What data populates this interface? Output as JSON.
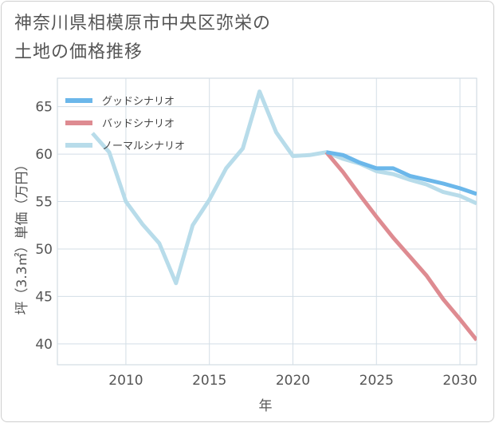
{
  "title": {
    "line1": "神奈川県相模原市中央区弥栄の",
    "line2": "土地の価格推移"
  },
  "chart_data": {
    "type": "line",
    "xlabel": "年",
    "ylabel": "坪（3.3㎡）単価（万円）",
    "xlim": [
      2005.9,
      2031
    ],
    "ylim": [
      37.8,
      68
    ],
    "xticks": [
      2010,
      2015,
      2020,
      2025,
      2030
    ],
    "yticks": [
      40,
      45,
      50,
      55,
      60,
      65
    ],
    "grid": true,
    "legend_position": "top-left",
    "series": [
      {
        "name": "グッドシナリオ",
        "color": "#6bb7ea",
        "x": [
          2022,
          2023,
          2024,
          2025,
          2026,
          2027,
          2028,
          2029,
          2030,
          2031
        ],
        "y": [
          60.2,
          59.9,
          59.1,
          58.5,
          58.5,
          57.7,
          57.3,
          56.9,
          56.4,
          55.8
        ]
      },
      {
        "name": "バッドシナリオ",
        "color": "#de8b91",
        "x": [
          2022,
          2023,
          2024,
          2025,
          2026,
          2027,
          2028,
          2029,
          2030,
          2031
        ],
        "y": [
          60.2,
          58.1,
          55.7,
          53.4,
          51.2,
          49.2,
          47.2,
          44.7,
          42.6,
          40.4
        ]
      },
      {
        "name": "ノーマルシナリオ",
        "color": "#b8dcea",
        "x": [
          2008,
          2009,
          2010,
          2011,
          2012,
          2013,
          2014,
          2015,
          2016,
          2017,
          2018,
          2019,
          2020,
          2021,
          2022,
          2023,
          2024,
          2025,
          2026,
          2027,
          2028,
          2029,
          2030,
          2031
        ],
        "y": [
          62.2,
          60.2,
          55.0,
          52.6,
          50.6,
          46.4,
          52.5,
          55.2,
          58.5,
          60.6,
          66.6,
          62.3,
          59.8,
          59.9,
          60.2,
          59.5,
          59.0,
          58.2,
          57.9,
          57.3,
          56.8,
          56.0,
          55.6,
          54.8
        ]
      }
    ]
  }
}
